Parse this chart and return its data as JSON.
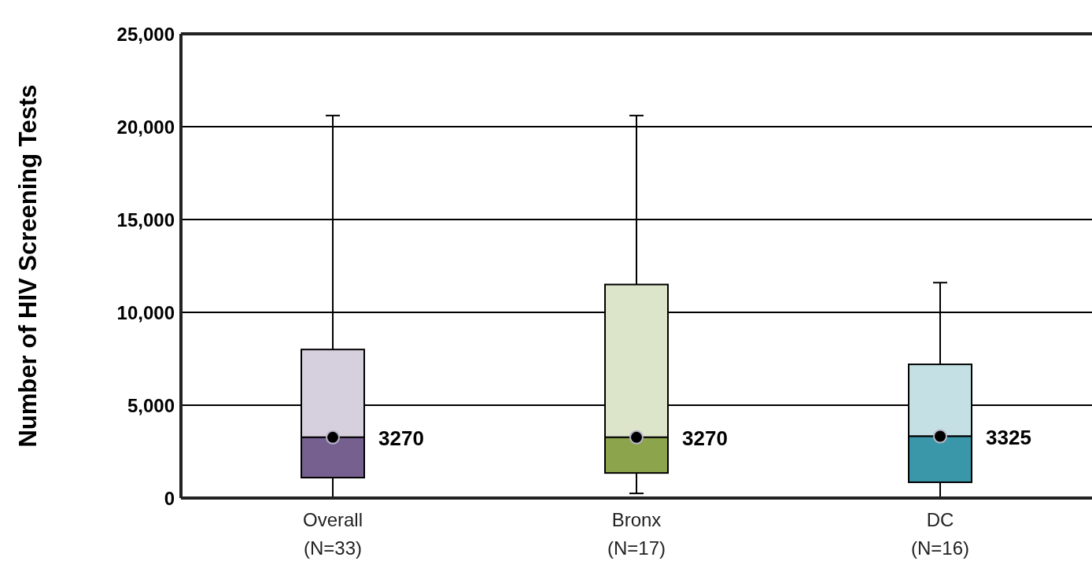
{
  "chart_data": {
    "type": "box",
    "ylabel": "Number of HIV Screening Tests",
    "categories": [
      "Overall (N=33)",
      "Bronx (N=17)",
      "DC (N=16)"
    ],
    "boxes": [
      {
        "low": 0,
        "q1": 1100,
        "median": 3270,
        "q3": 8000,
        "high": 20600,
        "mean": 3270
      },
      {
        "low": 250,
        "q1": 1350,
        "median": 3270,
        "q3": 11500,
        "high": 20600,
        "mean": 3270
      },
      {
        "low": 0,
        "q1": 850,
        "median": 3325,
        "q3": 7200,
        "high": 11600,
        "mean": 3325
      }
    ],
    "colors": [
      "#76608f",
      "#8ca44c",
      "#3a97aa"
    ],
    "value_labels": [
      "3270",
      "3270",
      "3325"
    ],
    "ylim": [
      0,
      25000
    ],
    "yticks": [
      {
        "value": 0,
        "label": "0"
      },
      {
        "value": 5000,
        "label": "5,000"
      },
      {
        "value": 10000,
        "label": "10,000"
      },
      {
        "value": 15000,
        "label": "15,000"
      },
      {
        "value": 20000,
        "label": "20,000"
      },
      {
        "value": 25000,
        "label": "25,000"
      }
    ],
    "grid": "y"
  }
}
